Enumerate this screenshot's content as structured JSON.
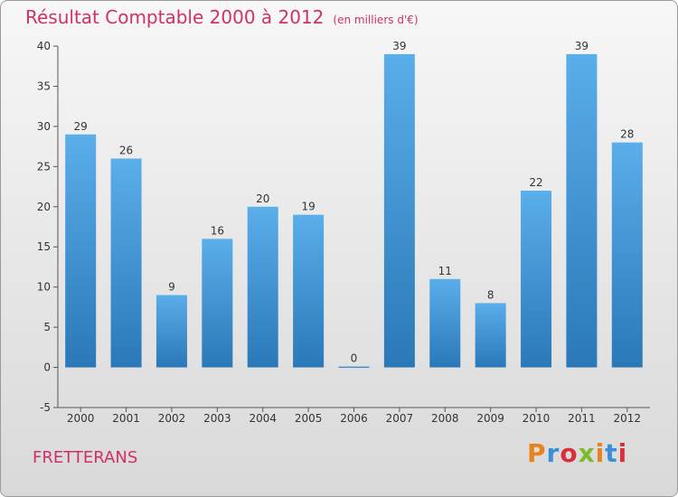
{
  "header": {
    "title": "Résultat Comptable 2000 à 2012",
    "unit": "(en milliers d'€)"
  },
  "commune": "FRETTERANS",
  "logo": {
    "text": "Proxiti"
  },
  "chart_data": {
    "type": "bar",
    "title": "Résultat Comptable 2000 à 2012",
    "ylabel": "en milliers d'€",
    "xlabel": "",
    "categories": [
      "2000",
      "2001",
      "2002",
      "2003",
      "2004",
      "2005",
      "2006",
      "2007",
      "2008",
      "2009",
      "2010",
      "2011",
      "2012"
    ],
    "values": [
      29,
      26,
      9,
      16,
      20,
      19,
      0,
      39,
      11,
      8,
      22,
      39,
      28
    ],
    "ylim": [
      -5,
      40
    ],
    "yticks": [
      -5,
      0,
      5,
      10,
      15,
      20,
      25,
      30,
      35,
      40
    ],
    "grid": false,
    "bar_color": "#4a9fe0"
  }
}
